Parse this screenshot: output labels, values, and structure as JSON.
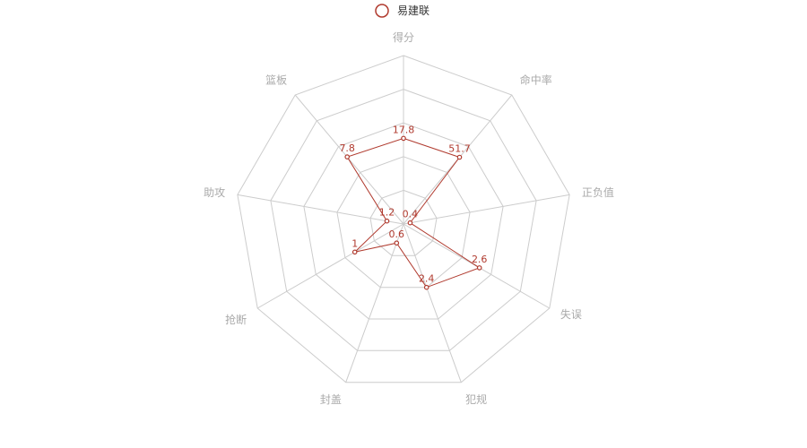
{
  "chart_data": {
    "type": "radar",
    "title": "",
    "legend": {
      "position": "top-center"
    },
    "indicators": [
      {
        "name": "得分",
        "max": 35
      },
      {
        "name": "命中率",
        "max": 100
      },
      {
        "name": "正负值",
        "max": 10
      },
      {
        "name": "失误",
        "max": 5
      },
      {
        "name": "犯规",
        "max": 6
      },
      {
        "name": "封盖",
        "max": 5
      },
      {
        "name": "抢断",
        "max": 3
      },
      {
        "name": "助攻",
        "max": 12
      },
      {
        "name": "篮板",
        "max": 15
      }
    ],
    "series": [
      {
        "name": "易建联",
        "color": "#b03a2e",
        "values": [
          17.8,
          51.7,
          0.4,
          2.6,
          2.4,
          0.6,
          1,
          1.2,
          7.8
        ]
      }
    ],
    "grid": {
      "rings": 5,
      "line_color": "#cccccc"
    }
  }
}
